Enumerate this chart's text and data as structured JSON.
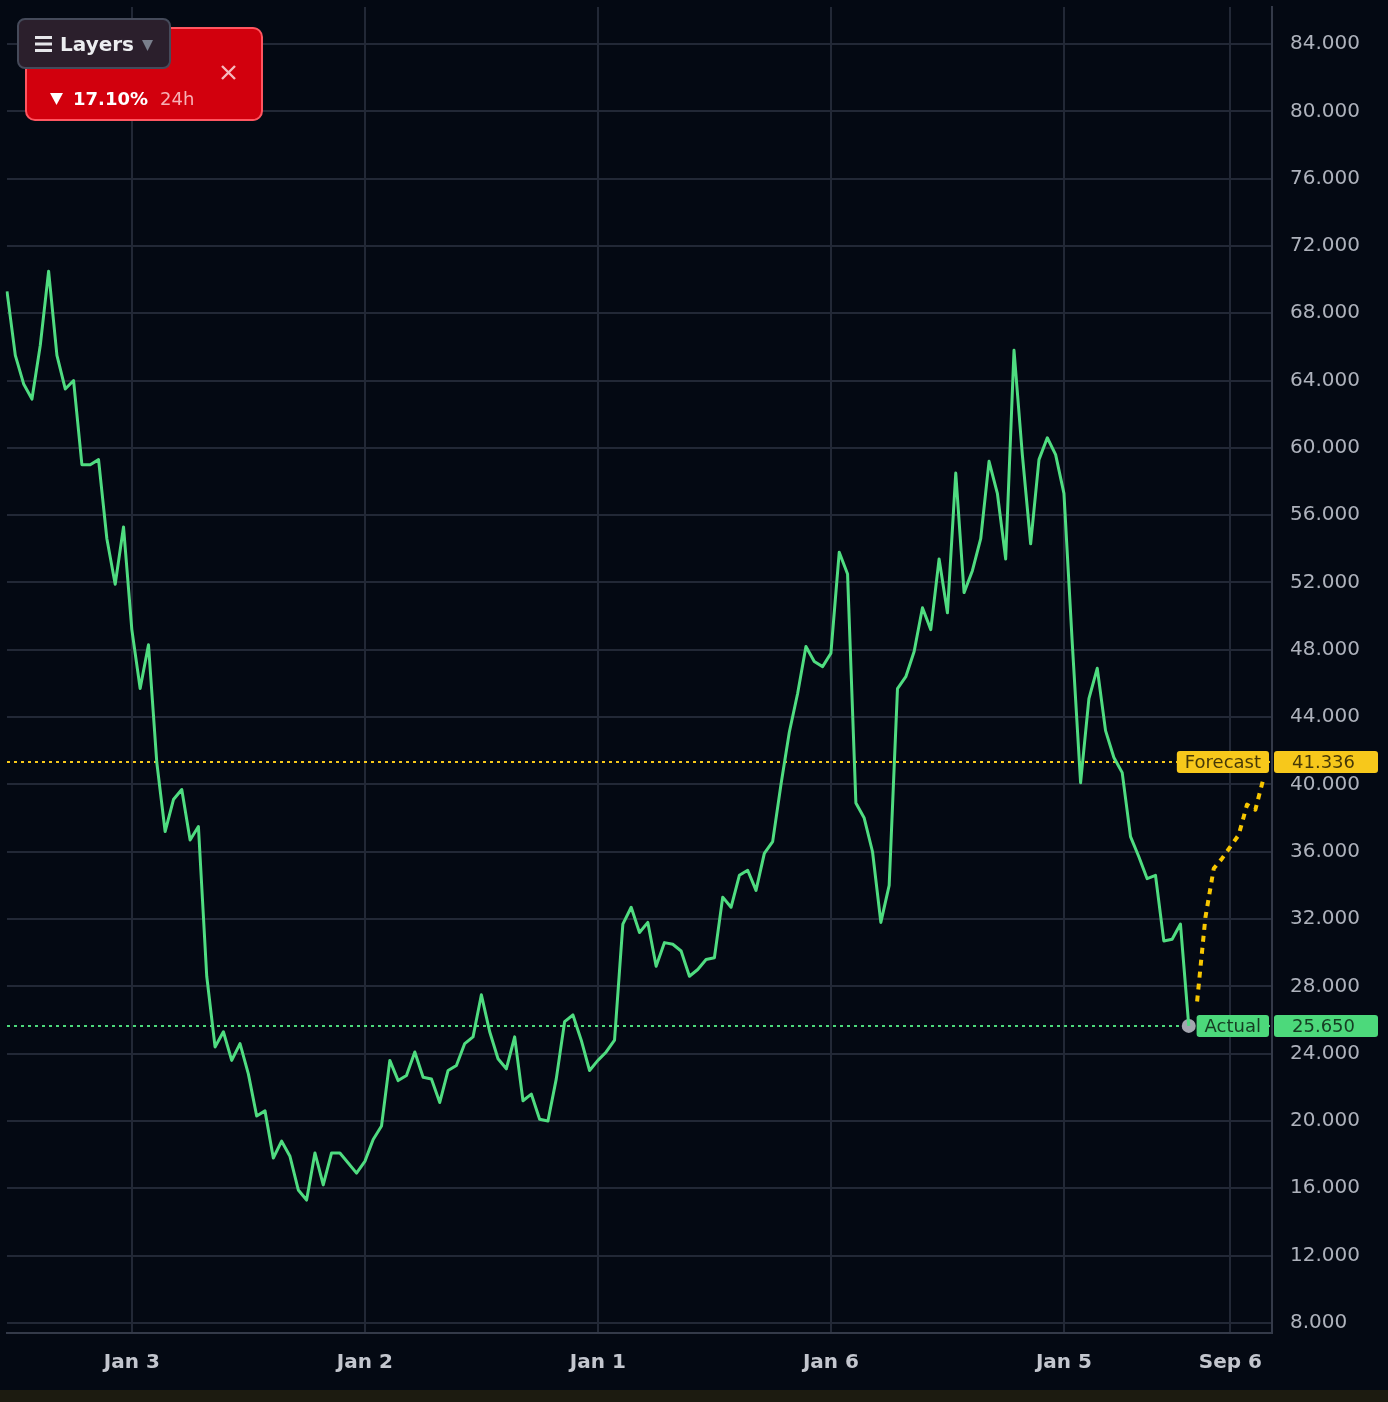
{
  "chart_data": {
    "type": "line",
    "categories": [
      null,
      null,
      null,
      null,
      null,
      null,
      null,
      null,
      null,
      null,
      null,
      null,
      null,
      null,
      null,
      "Jan 3",
      null,
      null,
      null,
      null,
      null,
      null,
      null,
      null,
      null,
      null,
      null,
      null,
      null,
      null,
      null,
      null,
      null,
      null,
      null,
      null,
      null,
      null,
      null,
      null,
      null,
      null,
      null,
      "Jan 2",
      null,
      null,
      null,
      null,
      null,
      null,
      null,
      null,
      null,
      null,
      null,
      null,
      null,
      null,
      null,
      null,
      null,
      null,
      null,
      null,
      null,
      null,
      null,
      null,
      null,
      null,
      null,
      "Jan 1",
      null,
      null,
      null,
      null,
      null,
      null,
      null,
      null,
      null,
      null,
      null,
      null,
      null,
      null,
      null,
      null,
      null,
      null,
      null,
      null,
      null,
      null,
      null,
      null,
      null,
      null,
      null,
      "Jan 6",
      null,
      null,
      null,
      null,
      null,
      null,
      null,
      null,
      null,
      null,
      null,
      null,
      null,
      null,
      null,
      null,
      null,
      null,
      null,
      null,
      null,
      null,
      null,
      null,
      null,
      null,
      null,
      "Jan 5",
      null,
      null,
      null,
      null,
      null,
      null,
      null,
      null,
      null,
      null,
      null,
      null,
      null,
      null,
      null,
      null,
      null,
      null,
      null,
      "Sep 6",
      null,
      null,
      null,
      null,
      null
    ],
    "series": [
      {
        "color": "#4fdc80",
        "values": [
          69.3,
          65.5,
          63.8,
          62.9,
          66.1,
          70.5,
          65.5,
          63.5,
          64.0,
          59.0,
          59.0,
          59.3,
          54.6,
          51.9,
          55.3,
          49.2,
          45.7,
          48.3,
          41.3,
          37.2,
          39.1,
          39.7,
          36.7,
          37.5,
          28.6,
          24.4,
          25.3,
          23.6,
          24.6,
          22.8,
          20.3,
          20.6,
          17.8,
          18.8,
          17.9,
          15.9,
          15.3,
          18.1,
          16.2,
          18.1,
          18.1,
          17.5,
          16.9,
          17.6,
          18.9,
          19.7,
          23.6,
          22.4,
          22.7,
          24.1,
          22.6,
          22.5,
          21.1,
          23.0,
          23.3,
          24.6,
          25.0,
          27.5,
          25.3,
          23.7,
          23.1,
          25.0,
          21.2,
          21.6,
          20.1,
          20.0,
          22.5,
          25.9,
          26.3,
          24.8,
          23.0,
          23.6,
          24.1,
          24.8,
          31.7,
          32.7,
          31.2,
          31.8,
          29.2,
          30.6,
          30.5,
          30.1,
          28.6,
          29.0,
          29.6,
          29.7,
          33.3,
          32.7,
          34.6,
          34.9,
          33.7,
          35.9,
          36.6,
          40.0,
          43.1,
          45.4,
          48.2,
          47.3,
          47.0,
          47.8,
          53.8,
          52.5,
          38.9,
          38.0,
          36.0,
          31.8,
          34.0,
          45.7,
          46.4,
          47.9,
          50.5,
          49.2,
          53.4,
          50.2,
          58.5,
          51.4,
          52.7,
          54.6,
          59.2,
          57.3,
          53.4,
          65.8,
          59.6,
          54.3,
          59.3,
          60.6,
          59.6,
          57.3,
          48.4,
          40.1,
          45.1,
          46.9,
          43.2,
          41.6,
          40.7,
          36.9,
          35.7,
          34.4,
          34.6,
          30.7,
          30.8,
          31.7,
          25.65,
          null,
          null,
          null,
          null,
          null,
          null,
          null,
          null,
          null,
          null
        ]
      },
      {
        "color": "#f7c600",
        "line_style": "dotted",
        "values": [
          null,
          null,
          null,
          null,
          null,
          null,
          null,
          null,
          null,
          null,
          null,
          null,
          null,
          null,
          null,
          null,
          null,
          null,
          null,
          null,
          null,
          null,
          null,
          null,
          null,
          null,
          null,
          null,
          null,
          null,
          null,
          null,
          null,
          null,
          null,
          null,
          null,
          null,
          null,
          null,
          null,
          null,
          null,
          null,
          null,
          null,
          null,
          null,
          null,
          null,
          null,
          null,
          null,
          null,
          null,
          null,
          null,
          null,
          null,
          null,
          null,
          null,
          null,
          null,
          null,
          null,
          null,
          null,
          null,
          null,
          null,
          null,
          null,
          null,
          null,
          null,
          null,
          null,
          null,
          null,
          null,
          null,
          null,
          null,
          null,
          null,
          null,
          null,
          null,
          null,
          null,
          null,
          null,
          null,
          null,
          null,
          null,
          null,
          null,
          null,
          null,
          null,
          null,
          null,
          null,
          null,
          null,
          null,
          null,
          null,
          null,
          null,
          null,
          null,
          null,
          null,
          null,
          null,
          null,
          null,
          null,
          null,
          null,
          null,
          null,
          null,
          null,
          null,
          null,
          null,
          null,
          null,
          null,
          null,
          null,
          null,
          null,
          null,
          null,
          null,
          null,
          null,
          null,
          27.1,
          32.1,
          35.0,
          35.6,
          36.3,
          37.0,
          38.8,
          38.5,
          40.4,
          null
        ]
      },
      {
        "type": "scatter",
        "color": "#a3a6af",
        "marker": "circle",
        "values": [
          null,
          null,
          null,
          null,
          null,
          null,
          null,
          null,
          null,
          null,
          null,
          null,
          null,
          null,
          null,
          null,
          null,
          null,
          null,
          null,
          null,
          null,
          null,
          null,
          null,
          null,
          null,
          null,
          null,
          null,
          null,
          null,
          null,
          null,
          null,
          null,
          null,
          null,
          null,
          null,
          null,
          null,
          null,
          null,
          null,
          null,
          null,
          null,
          null,
          null,
          null,
          null,
          null,
          null,
          null,
          null,
          null,
          null,
          null,
          null,
          null,
          null,
          null,
          null,
          null,
          null,
          null,
          null,
          null,
          null,
          null,
          null,
          null,
          null,
          null,
          null,
          null,
          null,
          null,
          null,
          null,
          null,
          null,
          null,
          null,
          null,
          null,
          null,
          null,
          null,
          null,
          null,
          null,
          null,
          null,
          null,
          null,
          null,
          null,
          null,
          null,
          null,
          null,
          null,
          null,
          null,
          null,
          null,
          null,
          null,
          null,
          null,
          null,
          null,
          null,
          null,
          null,
          null,
          null,
          null,
          null,
          null,
          null,
          null,
          null,
          null,
          null,
          null,
          null,
          null,
          null,
          null,
          null,
          null,
          null,
          null,
          null,
          null,
          null,
          null,
          null,
          null,
          25.65,
          null,
          null,
          null,
          null,
          null,
          null,
          null,
          null,
          null,
          null
        ]
      }
    ],
    "ylim": [
      7.4,
      86.2
    ],
    "yticks": [
      {
        "value": 8,
        "label": "8.000"
      },
      {
        "value": 12,
        "label": "12.000"
      },
      {
        "value": 16,
        "label": "16.000"
      },
      {
        "value": 20,
        "label": "20.000"
      },
      {
        "value": 24,
        "label": "24.000"
      },
      {
        "value": 28,
        "label": "28.000"
      },
      {
        "value": 32,
        "label": "32.000"
      },
      {
        "value": 36,
        "label": "36.000"
      },
      {
        "value": 40,
        "label": "40.000"
      },
      {
        "value": 44,
        "label": "44.000"
      },
      {
        "value": 48,
        "label": "48.000"
      },
      {
        "value": 52,
        "label": "52.000"
      },
      {
        "value": 56,
        "label": "56.000"
      },
      {
        "value": 60,
        "label": "60.000"
      },
      {
        "value": 64,
        "label": "64.000"
      },
      {
        "value": 68,
        "label": "68.000"
      },
      {
        "value": 72,
        "label": "72.000"
      },
      {
        "value": 76,
        "label": "76.000"
      },
      {
        "value": 80,
        "label": "80.000"
      },
      {
        "value": 84,
        "label": "84.000"
      }
    ],
    "grid": true,
    "marker": "none",
    "ref_lines": [
      {
        "axis": "y",
        "value": 41.336,
        "label": "Forecast",
        "color": "#f7c81b",
        "line_style": "dotted"
      },
      {
        "axis": "y",
        "value": 25.65,
        "label": "Actual",
        "color": "#4cd97b",
        "line_style": "dotted"
      }
    ],
    "annotations": [
      "Layers",
      "17.10%",
      "24h",
      "41.336",
      "25.650"
    ]
  }
}
